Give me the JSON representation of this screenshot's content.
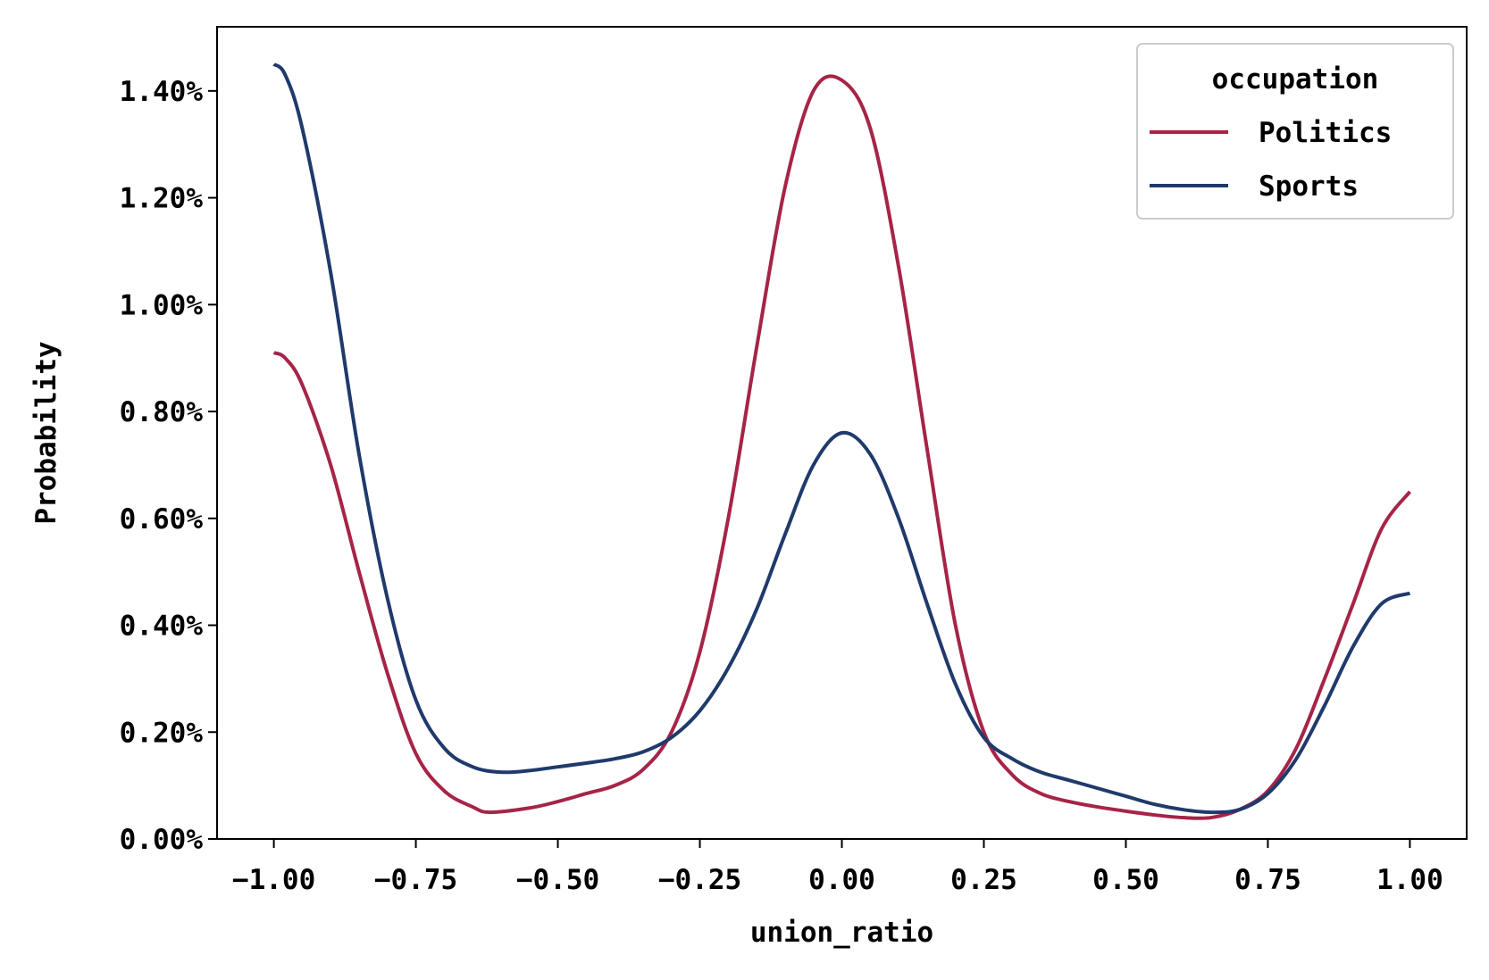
{
  "chart_data": {
    "type": "line",
    "xlabel": "union_ratio",
    "ylabel": "Probability",
    "xlim": [
      -1.1,
      1.1
    ],
    "ylim": [
      0,
      1.52
    ],
    "xticks": [
      -1.0,
      -0.75,
      -0.5,
      -0.25,
      0.0,
      0.25,
      0.5,
      0.75,
      1.0
    ],
    "xtick_labels": [
      "−1.00",
      "−0.75",
      "−0.50",
      "−0.25",
      "0.00",
      "0.25",
      "0.50",
      "0.75",
      "1.00"
    ],
    "yticks": [
      0,
      0.2,
      0.4,
      0.6,
      0.8,
      1.0,
      1.2,
      1.4
    ],
    "ytick_labels": [
      "0.00%",
      "0.20%",
      "0.40%",
      "0.60%",
      "0.80%",
      "1.00%",
      "1.20%",
      "1.40%"
    ],
    "grid": false,
    "legend": {
      "title": "occupation",
      "placement": "top-right"
    },
    "series": [
      {
        "name": "Politics",
        "color": "#A62447",
        "x": [
          -1.0,
          -0.98,
          -0.95,
          -0.9,
          -0.85,
          -0.8,
          -0.75,
          -0.7,
          -0.65,
          -0.62,
          -0.55,
          -0.5,
          -0.45,
          -0.4,
          -0.35,
          -0.3,
          -0.25,
          -0.2,
          -0.15,
          -0.1,
          -0.05,
          0.0,
          0.05,
          0.1,
          0.15,
          0.2,
          0.25,
          0.3,
          0.35,
          0.4,
          0.45,
          0.5,
          0.55,
          0.6,
          0.65,
          0.7,
          0.75,
          0.8,
          0.85,
          0.9,
          0.95,
          1.0
        ],
        "y": [
          0.91,
          0.9,
          0.85,
          0.7,
          0.5,
          0.31,
          0.16,
          0.09,
          0.06,
          0.05,
          0.058,
          0.07,
          0.085,
          0.1,
          0.13,
          0.2,
          0.35,
          0.6,
          0.92,
          1.22,
          1.4,
          1.42,
          1.33,
          1.07,
          0.73,
          0.4,
          0.2,
          0.12,
          0.085,
          0.07,
          0.06,
          0.052,
          0.045,
          0.04,
          0.04,
          0.055,
          0.09,
          0.17,
          0.3,
          0.44,
          0.58,
          0.65
        ]
      },
      {
        "name": "Sports",
        "color": "#1F3A6B",
        "x": [
          -1.0,
          -0.98,
          -0.95,
          -0.9,
          -0.85,
          -0.8,
          -0.75,
          -0.7,
          -0.65,
          -0.6,
          -0.55,
          -0.5,
          -0.45,
          -0.4,
          -0.35,
          -0.3,
          -0.25,
          -0.2,
          -0.15,
          -0.1,
          -0.05,
          0.0,
          0.05,
          0.1,
          0.15,
          0.2,
          0.25,
          0.3,
          0.35,
          0.4,
          0.45,
          0.5,
          0.55,
          0.6,
          0.65,
          0.7,
          0.75,
          0.8,
          0.85,
          0.9,
          0.95,
          1.0
        ],
        "y": [
          1.45,
          1.43,
          1.33,
          1.06,
          0.72,
          0.45,
          0.26,
          0.17,
          0.135,
          0.125,
          0.128,
          0.135,
          0.142,
          0.15,
          0.163,
          0.19,
          0.24,
          0.32,
          0.43,
          0.57,
          0.7,
          0.76,
          0.72,
          0.6,
          0.44,
          0.29,
          0.19,
          0.15,
          0.125,
          0.11,
          0.095,
          0.08,
          0.065,
          0.055,
          0.05,
          0.055,
          0.085,
          0.15,
          0.25,
          0.36,
          0.44,
          0.46
        ]
      }
    ]
  }
}
